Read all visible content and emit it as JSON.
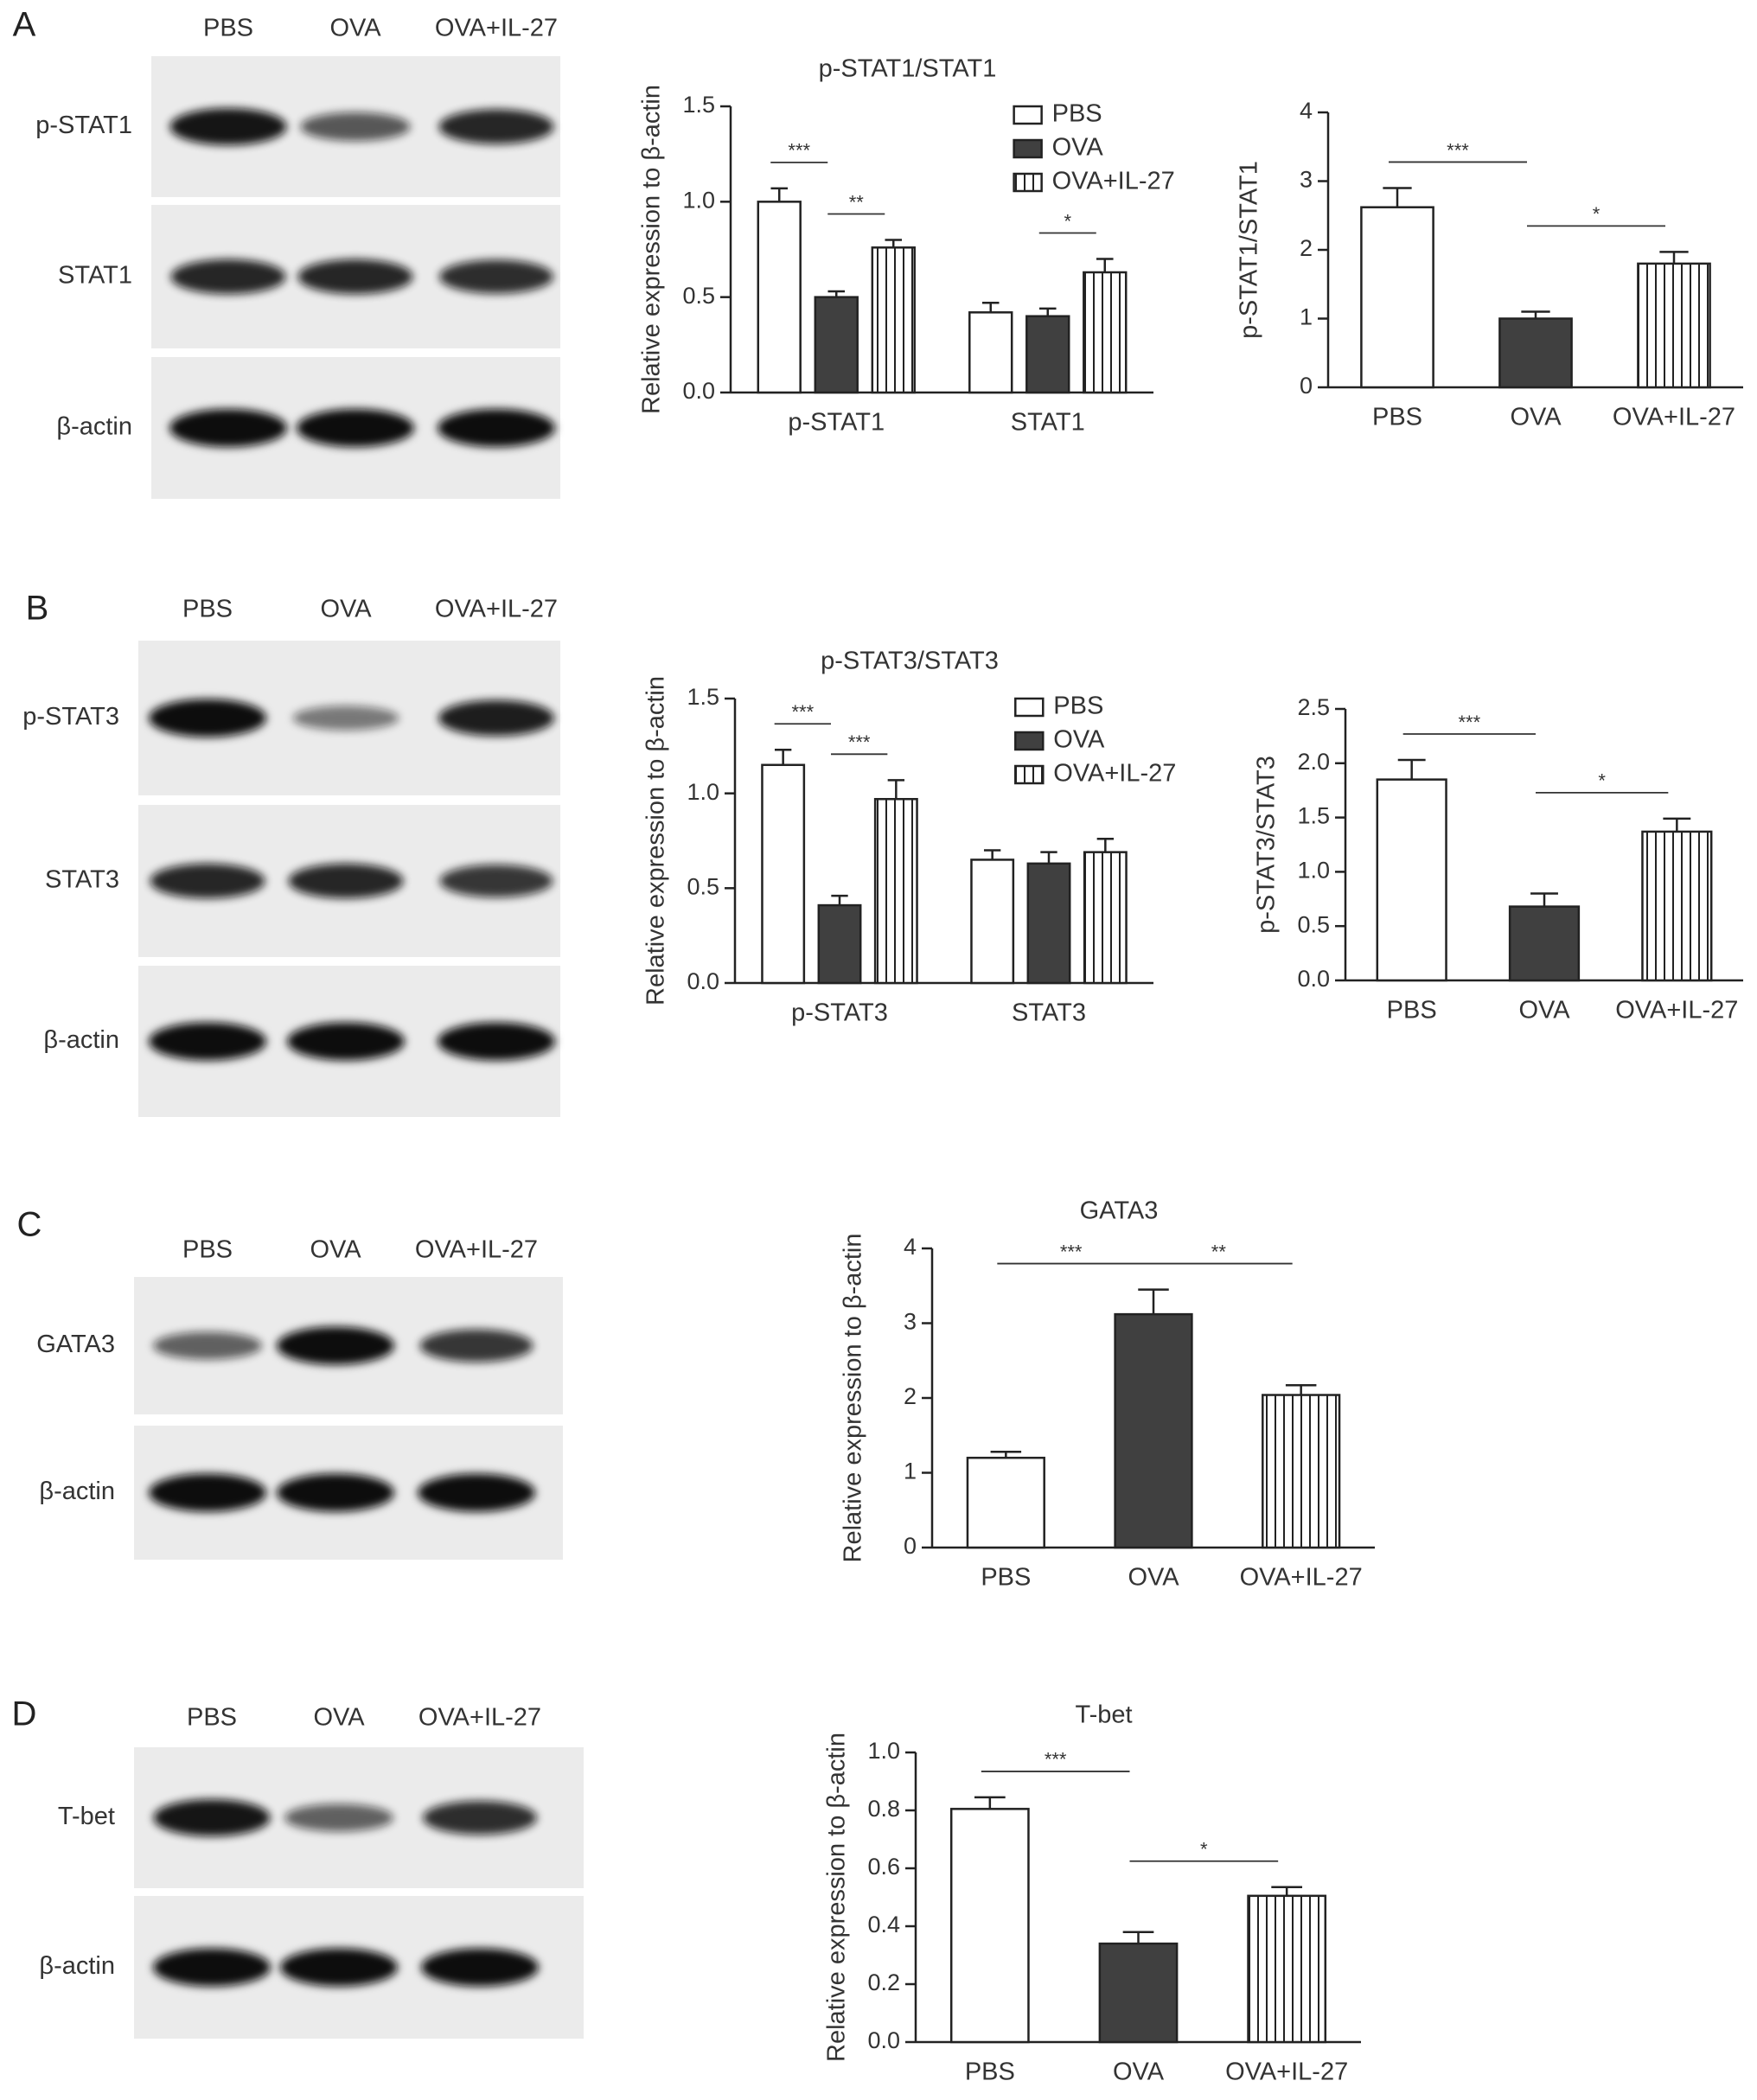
{
  "blots": [
    {
      "letter": "A",
      "lanes": [
        "PBS",
        "OVA",
        "OVA+IL-27"
      ],
      "rows": [
        "p-STAT1",
        "STAT1",
        "β-actin"
      ]
    },
    {
      "letter": "B",
      "lanes": [
        "PBS",
        "OVA",
        "OVA+IL-27"
      ],
      "rows": [
        "p-STAT3",
        "STAT3",
        "β-actin"
      ]
    },
    {
      "letter": "C",
      "lanes": [
        "PBS",
        "OVA",
        "OVA+IL-27"
      ],
      "rows": [
        "GATA3",
        "β-actin"
      ]
    },
    {
      "letter": "D",
      "lanes": [
        "PBS",
        "OVA",
        "OVA+IL-27"
      ],
      "rows": [
        "T-bet",
        "β-actin"
      ]
    }
  ],
  "chart_data": [
    {
      "type": "bar",
      "title": "p-STAT1/STAT1",
      "ylabel": "Relative expression to β-actin",
      "categories": [
        "p-STAT1",
        "STAT1"
      ],
      "series": [
        {
          "name": "PBS",
          "color": "#ffffff",
          "values": [
            1.0,
            0.42
          ],
          "errors": [
            0.07,
            0.05
          ]
        },
        {
          "name": "OVA",
          "color": "#404040",
          "values": [
            0.5,
            0.4
          ],
          "errors": [
            0.03,
            0.04
          ]
        },
        {
          "name": "OVA+IL-27",
          "color": "#ffffff",
          "hatch": "vertical",
          "values": [
            0.76,
            0.63
          ],
          "errors": [
            0.04,
            0.07
          ]
        }
      ],
      "ylim": [
        0,
        1.5
      ],
      "yticks": [
        {
          "value": 0,
          "label": "0.0"
        },
        0.5,
        {
          "value": 1,
          "label": "1.0"
        },
        1.5
      ],
      "legend": "upper right",
      "annotations": [
        {
          "text": "***",
          "category": "p-STAT1",
          "between": [
            "PBS",
            "OVA"
          ]
        },
        {
          "text": "**",
          "category": "p-STAT1",
          "between": [
            "OVA",
            "OVA+IL-27"
          ]
        },
        {
          "text": "*",
          "category": "STAT1",
          "between": [
            "OVA",
            "OVA+IL-27"
          ]
        }
      ]
    },
    {
      "type": "bar",
      "ylabel": "p-STAT1/STAT1",
      "categories": [
        "PBS",
        "OVA",
        "OVA+IL-27"
      ],
      "values": [
        2.62,
        1.0,
        1.8
      ],
      "errors": [
        0.28,
        0.1,
        0.17
      ],
      "bar_styles": [
        {
          "color": "#ffffff"
        },
        {
          "color": "#404040"
        },
        {
          "color": "#ffffff",
          "hatch": "vertical"
        }
      ],
      "ylim": [
        0,
        4
      ],
      "yticks": [
        0,
        1,
        2,
        3,
        4
      ],
      "annotations": [
        {
          "text": "***",
          "between": [
            "PBS",
            "OVA"
          ]
        },
        {
          "text": "*",
          "between": [
            "OVA",
            "OVA+IL-27"
          ]
        }
      ]
    },
    {
      "type": "bar",
      "title": "p-STAT3/STAT3",
      "ylabel": "Relative expression to β-actin",
      "categories": [
        "p-STAT3",
        "STAT3"
      ],
      "series": [
        {
          "name": "PBS",
          "color": "#ffffff",
          "values": [
            1.15,
            0.65
          ],
          "errors": [
            0.08,
            0.05
          ]
        },
        {
          "name": "OVA",
          "color": "#404040",
          "values": [
            0.41,
            0.63
          ],
          "errors": [
            0.05,
            0.06
          ]
        },
        {
          "name": "OVA+IL-27",
          "color": "#ffffff",
          "hatch": "vertical",
          "values": [
            0.97,
            0.69
          ],
          "errors": [
            0.1,
            0.07
          ]
        }
      ],
      "ylim": [
        0,
        1.5
      ],
      "yticks": [
        {
          "value": 0,
          "label": "0.0"
        },
        0.5,
        {
          "value": 1,
          "label": "1.0"
        },
        1.5
      ],
      "legend": "upper right",
      "annotations": [
        {
          "text": "***",
          "category": "p-STAT3",
          "between": [
            "PBS",
            "OVA"
          ]
        },
        {
          "text": "***",
          "category": "p-STAT3",
          "between": [
            "OVA",
            "OVA+IL-27"
          ]
        }
      ]
    },
    {
      "type": "bar",
      "ylabel": "p-STAT3/STAT3",
      "categories": [
        "PBS",
        "OVA",
        "OVA+IL-27"
      ],
      "values": [
        1.85,
        0.68,
        1.37
      ],
      "errors": [
        0.18,
        0.12,
        0.12
      ],
      "bar_styles": [
        {
          "color": "#ffffff"
        },
        {
          "color": "#404040"
        },
        {
          "color": "#ffffff",
          "hatch": "vertical"
        }
      ],
      "ylim": [
        0,
        2.5
      ],
      "yticks": [
        {
          "value": 0,
          "label": "0.0"
        },
        0.5,
        {
          "value": 1,
          "label": "1.0"
        },
        1.5,
        {
          "value": 2,
          "label": "2.0"
        },
        2.5
      ],
      "annotations": [
        {
          "text": "***",
          "between": [
            "PBS",
            "OVA"
          ]
        },
        {
          "text": "*",
          "between": [
            "OVA",
            "OVA+IL-27"
          ]
        }
      ]
    },
    {
      "type": "bar",
      "title": "GATA3",
      "ylabel": "Relative expression to β-actin",
      "categories": [
        "PBS",
        "OVA",
        "OVA+IL-27"
      ],
      "values": [
        1.2,
        3.12,
        2.04
      ],
      "errors": [
        0.08,
        0.33,
        0.13
      ],
      "bar_styles": [
        {
          "color": "#ffffff"
        },
        {
          "color": "#404040"
        },
        {
          "color": "#ffffff",
          "hatch": "vertical"
        }
      ],
      "ylim": [
        0,
        4
      ],
      "yticks": [
        0,
        1,
        2,
        3,
        4
      ],
      "annotations": [
        {
          "text": "***",
          "between": [
            "PBS",
            "OVA"
          ]
        },
        {
          "text": "**",
          "between": [
            "OVA",
            "OVA+IL-27"
          ]
        }
      ]
    },
    {
      "type": "bar",
      "title": "T-bet",
      "ylabel": "Relative expression to β-actin",
      "categories": [
        "PBS",
        "OVA",
        "OVA+IL-27"
      ],
      "values": [
        0.805,
        0.34,
        0.505
      ],
      "errors": [
        0.04,
        0.04,
        0.03
      ],
      "bar_styles": [
        {
          "color": "#ffffff"
        },
        {
          "color": "#404040"
        },
        {
          "color": "#ffffff",
          "hatch": "vertical"
        }
      ],
      "ylim": [
        0,
        1.0
      ],
      "yticks": [
        {
          "value": 0,
          "label": "0.0"
        },
        0.2,
        0.4,
        0.6,
        0.8,
        {
          "value": 1,
          "label": "1.0"
        }
      ],
      "annotations": [
        {
          "text": "***",
          "between": [
            "PBS",
            "OVA"
          ]
        },
        {
          "text": "*",
          "between": [
            "OVA",
            "OVA+IL-27"
          ]
        }
      ]
    }
  ]
}
